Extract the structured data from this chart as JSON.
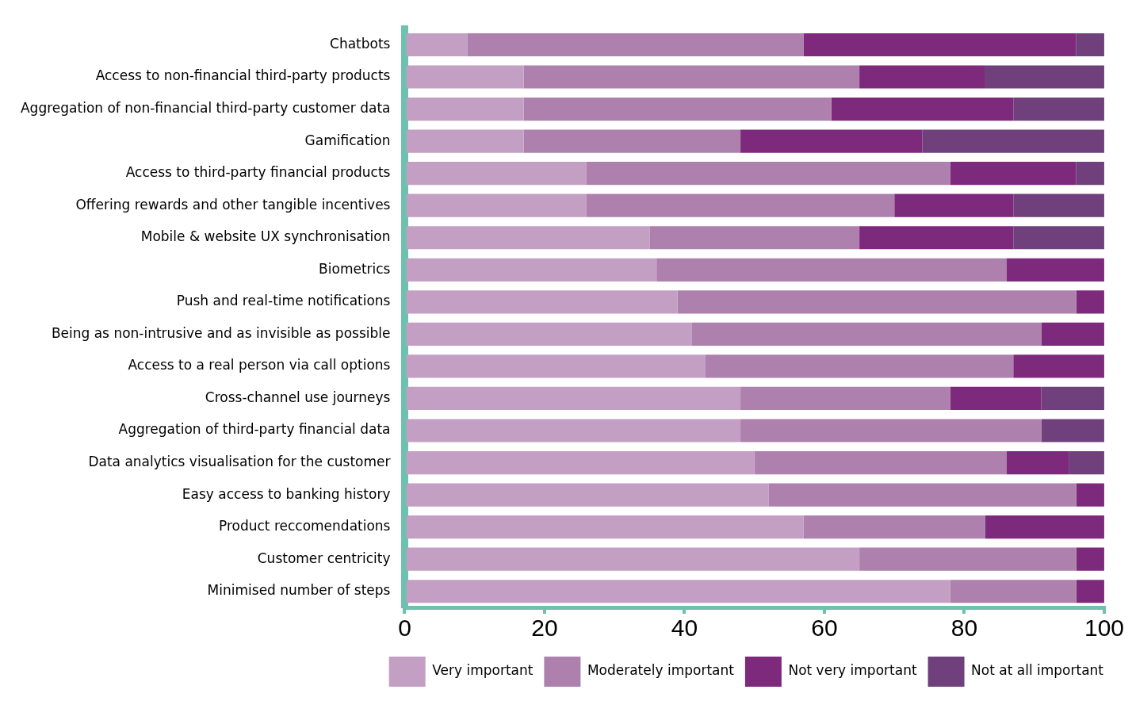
{
  "chart_data": {
    "type": "bar",
    "orientation": "horizontal",
    "stacked": true,
    "categories": [
      "Chatbots",
      "Access to non-financial third-party products",
      "Aggregation of non-financial third-party customer data",
      "Gamification",
      "Access to third-party financial products",
      "Offering rewards and other tangible incentives",
      "Mobile & website UX synchronisation",
      "Biometrics",
      "Push and real-time notifications",
      "Being as non-intrusive and as invisible as possible",
      "Access to a real person via call options",
      "Cross-channel use journeys",
      "Aggregation of third-party financial data",
      "Data analytics visualisation for the customer",
      "Easy access to banking history",
      "Product reccomendations",
      "Customer centricity",
      "Minimised number of steps"
    ],
    "series": [
      {
        "name": "Very important",
        "color": "#c39fc4",
        "values": [
          9,
          17,
          17,
          17,
          26,
          26,
          35,
          36,
          39,
          41,
          43,
          48,
          48,
          50,
          52,
          57,
          65,
          78
        ]
      },
      {
        "name": "Moderately important",
        "color": "#ae80ae",
        "values": [
          48,
          48,
          44,
          31,
          52,
          44,
          30,
          50,
          57,
          50,
          44,
          30,
          43,
          36,
          44,
          26,
          31,
          18
        ]
      },
      {
        "name": "Not very important",
        "color": "#7e2a7c",
        "values": [
          39,
          18,
          26,
          26,
          18,
          17,
          22,
          14,
          4,
          9,
          13,
          13,
          0,
          9,
          4,
          17,
          4,
          4
        ]
      },
      {
        "name": "Not at all important",
        "color": "#70407c",
        "values": [
          4,
          17,
          13,
          26,
          4,
          13,
          13,
          0,
          0,
          0,
          0,
          9,
          9,
          5,
          0,
          0,
          0,
          0
        ]
      }
    ],
    "xlim": [
      0,
      100
    ],
    "xticks": [
      0,
      20,
      40,
      60,
      80,
      100
    ],
    "grid": false,
    "legend": "bottom"
  }
}
